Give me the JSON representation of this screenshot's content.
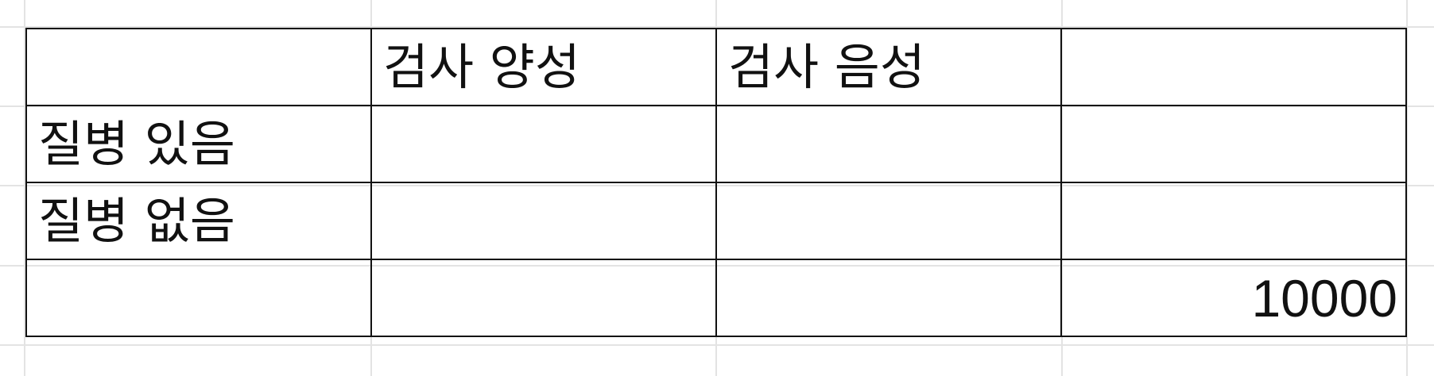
{
  "table": {
    "header": [
      "",
      "검사 양성",
      "검사 음성",
      ""
    ],
    "rows": [
      [
        "질병 있음",
        "",
        "",
        ""
      ],
      [
        "질병 없음",
        "",
        "",
        ""
      ],
      [
        "",
        "",
        "",
        "10000"
      ]
    ]
  },
  "colors": {
    "border": "#111111",
    "gridline": "#e3e3e3",
    "background": "#ffffff"
  }
}
